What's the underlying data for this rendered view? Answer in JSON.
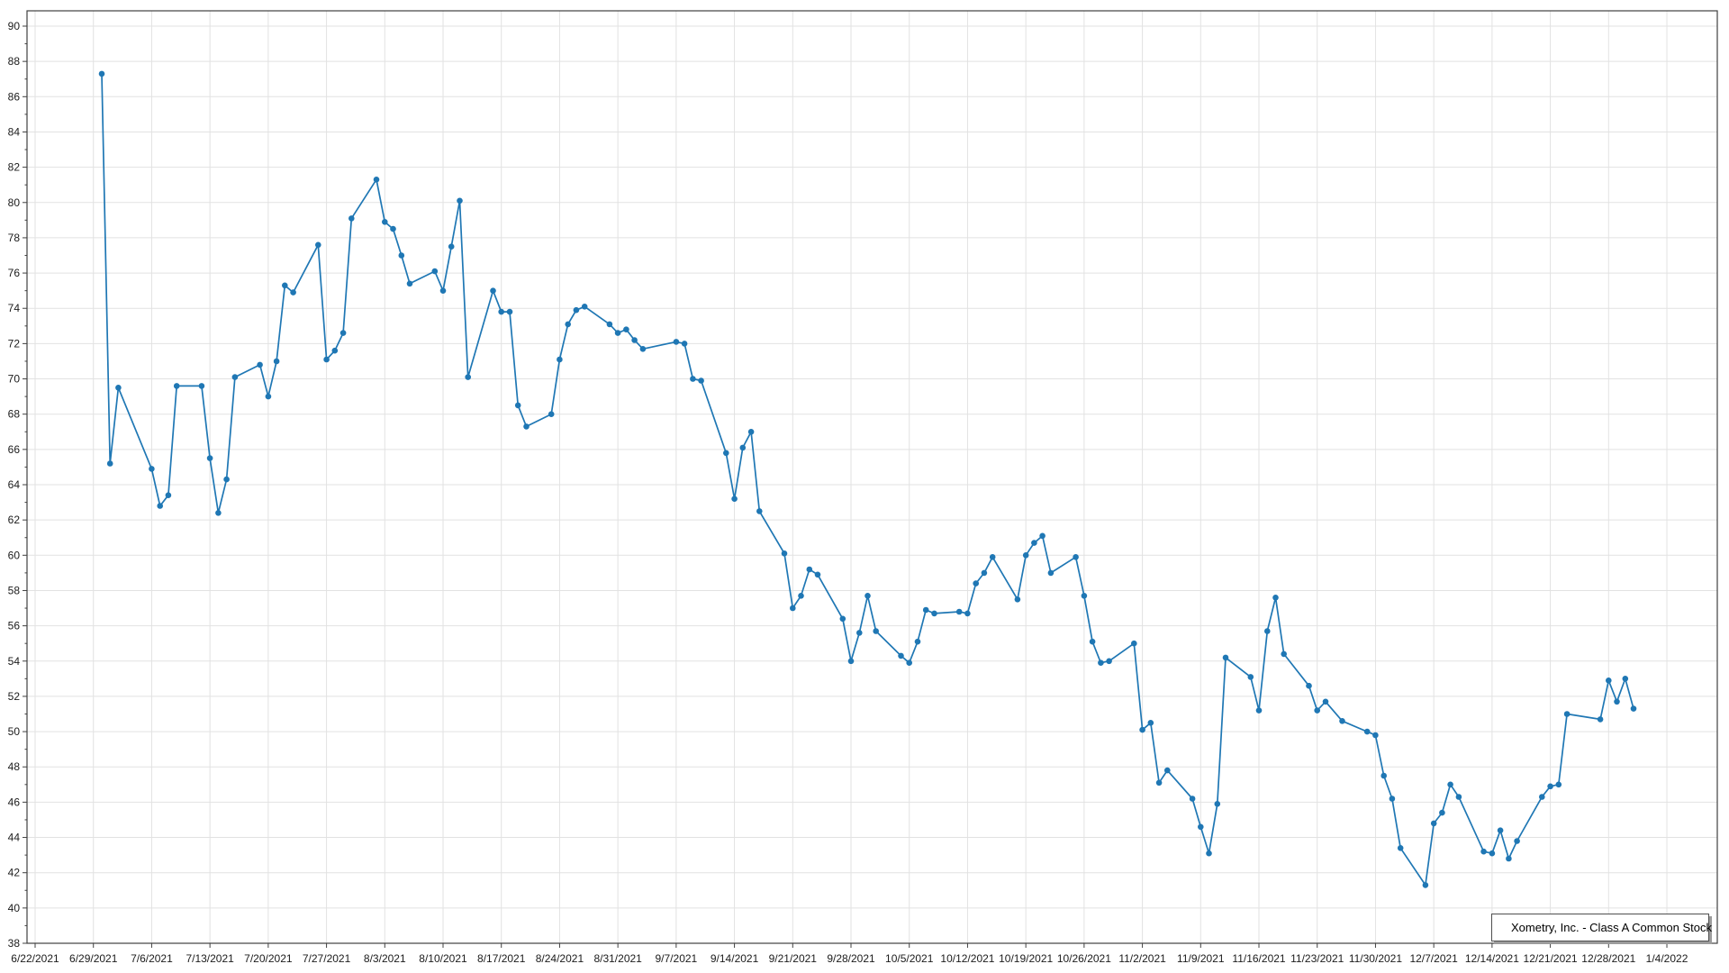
{
  "legend": {
    "label": "Xometry, Inc. - Class A Common Stock"
  },
  "colors": {
    "series": "#1f77b4",
    "grid": "#e2e2e2",
    "axis_border": "#404040",
    "tick_text": "#1b1b1b",
    "background": "#ffffff",
    "legend_border": "#4f4f4f",
    "legend_shadow": "#9c9c9c"
  },
  "chart_data": {
    "type": "line",
    "title": "",
    "xlabel": "",
    "ylabel": "",
    "grid": true,
    "legend_position": "bottom-right",
    "series_name": "Xometry, Inc. - Class A Common Stock",
    "y_axis": {
      "min": 38,
      "max": 90.9,
      "step": 2,
      "tick_labels": [
        "38",
        "40",
        "42",
        "44",
        "46",
        "48",
        "50",
        "52",
        "54",
        "56",
        "58",
        "60",
        "62",
        "64",
        "66",
        "68",
        "70",
        "72",
        "74",
        "76",
        "78",
        "80",
        "82",
        "84",
        "86",
        "88",
        "90"
      ]
    },
    "x_axis": {
      "start_tick": "6/22/2021",
      "tick_interval_days": 7,
      "tick_labels": [
        "6/22/2021",
        "6/29/2021",
        "7/6/2021",
        "7/13/2021",
        "7/20/2021",
        "7/27/2021",
        "8/3/2021",
        "8/10/2021",
        "8/17/2021",
        "8/24/2021",
        "8/31/2021",
        "9/7/2021",
        "9/14/2021",
        "9/21/2021",
        "9/28/2021",
        "10/5/2021",
        "10/12/2021",
        "10/19/2021",
        "10/26/2021",
        "11/2/2021",
        "11/9/2021",
        "11/16/2021",
        "11/23/2021",
        "11/30/2021",
        "12/7/2021",
        "12/14/2021",
        "12/21/2021",
        "12/28/2021",
        "1/4/2022"
      ]
    },
    "points": [
      [
        "6/30/2021",
        87.3
      ],
      [
        "7/1/2021",
        65.2
      ],
      [
        "7/2/2021",
        69.5
      ],
      [
        "7/6/2021",
        64.9
      ],
      [
        "7/7/2021",
        62.8
      ],
      [
        "7/8/2021",
        63.4
      ],
      [
        "7/9/2021",
        69.6
      ],
      [
        "7/12/2021",
        69.6
      ],
      [
        "7/13/2021",
        65.5
      ],
      [
        "7/14/2021",
        62.4
      ],
      [
        "7/15/2021",
        64.3
      ],
      [
        "7/16/2021",
        70.1
      ],
      [
        "7/19/2021",
        70.8
      ],
      [
        "7/20/2021",
        69.0
      ],
      [
        "7/21/2021",
        71.0
      ],
      [
        "7/22/2021",
        75.3
      ],
      [
        "7/23/2021",
        74.9
      ],
      [
        "7/26/2021",
        77.6
      ],
      [
        "7/27/2021",
        71.1
      ],
      [
        "7/28/2021",
        71.6
      ],
      [
        "7/29/2021",
        72.6
      ],
      [
        "7/30/2021",
        79.1
      ],
      [
        "8/2/2021",
        81.3
      ],
      [
        "8/3/2021",
        78.9
      ],
      [
        "8/4/2021",
        78.5
      ],
      [
        "8/5/2021",
        77.0
      ],
      [
        "8/6/2021",
        75.4
      ],
      [
        "8/9/2021",
        76.1
      ],
      [
        "8/10/2021",
        75.0
      ],
      [
        "8/11/2021",
        77.5
      ],
      [
        "8/12/2021",
        80.1
      ],
      [
        "8/13/2021",
        70.1
      ],
      [
        "8/16/2021",
        75.0
      ],
      [
        "8/17/2021",
        73.8
      ],
      [
        "8/18/2021",
        73.8
      ],
      [
        "8/19/2021",
        68.5
      ],
      [
        "8/20/2021",
        67.3
      ],
      [
        "8/23/2021",
        68.0
      ],
      [
        "8/24/2021",
        71.1
      ],
      [
        "8/25/2021",
        73.1
      ],
      [
        "8/26/2021",
        73.9
      ],
      [
        "8/27/2021",
        74.1
      ],
      [
        "8/30/2021",
        73.1
      ],
      [
        "8/31/2021",
        72.6
      ],
      [
        "9/1/2021",
        72.8
      ],
      [
        "9/2/2021",
        72.2
      ],
      [
        "9/3/2021",
        71.7
      ],
      [
        "9/7/2021",
        72.1
      ],
      [
        "9/8/2021",
        72.0
      ],
      [
        "9/9/2021",
        70.0
      ],
      [
        "9/10/2021",
        69.9
      ],
      [
        "9/13/2021",
        65.8
      ],
      [
        "9/14/2021",
        63.2
      ],
      [
        "9/15/2021",
        66.1
      ],
      [
        "9/16/2021",
        67.0
      ],
      [
        "9/17/2021",
        62.5
      ],
      [
        "9/20/2021",
        60.1
      ],
      [
        "9/21/2021",
        57.0
      ],
      [
        "9/22/2021",
        57.7
      ],
      [
        "9/23/2021",
        59.2
      ],
      [
        "9/24/2021",
        58.9
      ],
      [
        "9/27/2021",
        56.4
      ],
      [
        "9/28/2021",
        54.0
      ],
      [
        "9/29/2021",
        55.6
      ],
      [
        "9/30/2021",
        57.7
      ],
      [
        "10/1/2021",
        55.7
      ],
      [
        "10/4/2021",
        54.3
      ],
      [
        "10/5/2021",
        53.9
      ],
      [
        "10/6/2021",
        55.1
      ],
      [
        "10/7/2021",
        56.9
      ],
      [
        "10/8/2021",
        56.7
      ],
      [
        "10/11/2021",
        56.8
      ],
      [
        "10/12/2021",
        56.7
      ],
      [
        "10/13/2021",
        58.4
      ],
      [
        "10/14/2021",
        59.0
      ],
      [
        "10/15/2021",
        59.9
      ],
      [
        "10/18/2021",
        57.5
      ],
      [
        "10/19/2021",
        60.0
      ],
      [
        "10/20/2021",
        60.7
      ],
      [
        "10/21/2021",
        61.1
      ],
      [
        "10/22/2021",
        59.0
      ],
      [
        "10/25/2021",
        59.9
      ],
      [
        "10/26/2021",
        57.7
      ],
      [
        "10/27/2021",
        55.1
      ],
      [
        "10/28/2021",
        53.9
      ],
      [
        "10/29/2021",
        54.0
      ],
      [
        "11/1/2021",
        55.0
      ],
      [
        "11/2/2021",
        50.1
      ],
      [
        "11/3/2021",
        50.5
      ],
      [
        "11/4/2021",
        47.1
      ],
      [
        "11/5/2021",
        47.8
      ],
      [
        "11/8/2021",
        46.2
      ],
      [
        "11/9/2021",
        44.6
      ],
      [
        "11/10/2021",
        43.1
      ],
      [
        "11/11/2021",
        45.9
      ],
      [
        "11/12/2021",
        54.2
      ],
      [
        "11/15/2021",
        53.1
      ],
      [
        "11/16/2021",
        51.2
      ],
      [
        "11/17/2021",
        55.7
      ],
      [
        "11/18/2021",
        57.6
      ],
      [
        "11/19/2021",
        54.4
      ],
      [
        "11/22/2021",
        52.6
      ],
      [
        "11/23/2021",
        51.2
      ],
      [
        "11/24/2021",
        51.7
      ],
      [
        "11/26/2021",
        50.6
      ],
      [
        "11/29/2021",
        50.0
      ],
      [
        "11/30/2021",
        49.8
      ],
      [
        "12/1/2021",
        47.5
      ],
      [
        "12/2/2021",
        46.2
      ],
      [
        "12/3/2021",
        43.4
      ],
      [
        "12/6/2021",
        41.3
      ],
      [
        "12/7/2021",
        44.8
      ],
      [
        "12/8/2021",
        45.4
      ],
      [
        "12/9/2021",
        47.0
      ],
      [
        "12/10/2021",
        46.3
      ],
      [
        "12/13/2021",
        43.2
      ],
      [
        "12/14/2021",
        43.1
      ],
      [
        "12/15/2021",
        44.4
      ],
      [
        "12/16/2021",
        42.8
      ],
      [
        "12/17/2021",
        43.8
      ],
      [
        "12/20/2021",
        46.3
      ],
      [
        "12/21/2021",
        46.9
      ],
      [
        "12/22/2021",
        47.0
      ],
      [
        "12/23/2021",
        51.0
      ],
      [
        "12/27/2021",
        50.7
      ],
      [
        "12/28/2021",
        52.9
      ],
      [
        "12/29/2021",
        51.7
      ],
      [
        "12/30/2021",
        53.0
      ],
      [
        "12/31/2021",
        51.3
      ]
    ]
  }
}
